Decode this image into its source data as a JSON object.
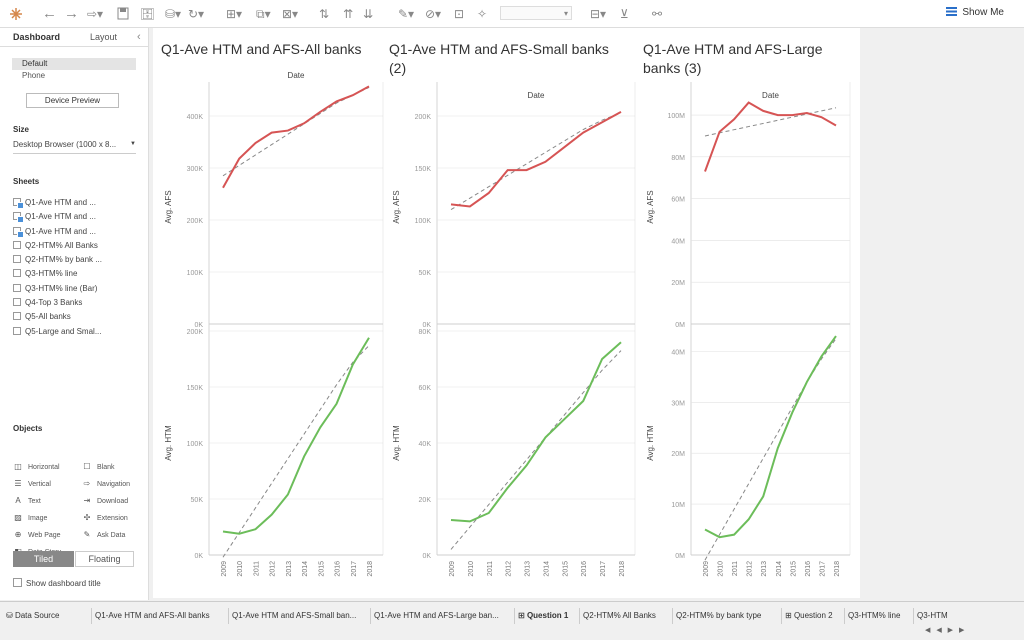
{
  "toolbar": {
    "show_me_label": "Show Me",
    "icons": [
      "tableau-logo-icon",
      "undo-icon",
      "redo-icon",
      "redo-dropdown-icon",
      "save-icon",
      "new-datasource-icon",
      "pause-updates-icon",
      "refresh-icon",
      "new-worksheet-icon",
      "duplicate-icon",
      "clear-icon",
      "swap-icon",
      "sort-asc-icon",
      "sort-desc-icon",
      "highlight-icon",
      "group-icon",
      "label-icon",
      "pin-icon",
      "fit-icon",
      "fix-axes-icon",
      "presentation-icon",
      "share-icon"
    ]
  },
  "sidebar": {
    "tabs": {
      "dashboard": "Dashboard",
      "layout": "Layout"
    },
    "device_default": "Default",
    "device_phone": "Phone",
    "device_preview": "Device Preview",
    "size_heading": "Size",
    "size_value": "Desktop Browser (1000 x 8...",
    "sheets_heading": "Sheets",
    "sheets": [
      {
        "label": "Q1-Ave HTM and ...",
        "in_dashboard": true
      },
      {
        "label": "Q1-Ave HTM and ...",
        "in_dashboard": true
      },
      {
        "label": "Q1-Ave HTM and ...",
        "in_dashboard": true
      },
      {
        "label": "Q2-HTM% All Banks",
        "in_dashboard": false
      },
      {
        "label": "Q2-HTM% by bank ...",
        "in_dashboard": false
      },
      {
        "label": "Q3-HTM% line",
        "in_dashboard": false
      },
      {
        "label": "Q3-HTM% line (Bar)",
        "in_dashboard": false
      },
      {
        "label": "Q4-Top 3 Banks",
        "in_dashboard": false
      },
      {
        "label": "Q5-All banks",
        "in_dashboard": false
      },
      {
        "label": "Q5-Large and Smal...",
        "in_dashboard": false
      }
    ],
    "objects_heading": "Objects",
    "objects": [
      {
        "label": "Horizontal",
        "icon": "horizontal-icon",
        "glyph": "◫"
      },
      {
        "label": "Blank",
        "icon": "blank-icon",
        "glyph": "☐"
      },
      {
        "label": "Vertical",
        "icon": "vertical-icon",
        "glyph": "☰"
      },
      {
        "label": "Navigation",
        "icon": "navigation-icon",
        "glyph": "⇨"
      },
      {
        "label": "Text",
        "icon": "text-icon",
        "glyph": "A"
      },
      {
        "label": "Download",
        "icon": "download-icon",
        "glyph": "⇥"
      },
      {
        "label": "Image",
        "icon": "image-icon",
        "glyph": "▨"
      },
      {
        "label": "Extension",
        "icon": "extension-icon",
        "glyph": "✣"
      },
      {
        "label": "Web Page",
        "icon": "web-page-icon",
        "glyph": "⊕"
      },
      {
        "label": "Ask Data",
        "icon": "ask-data-icon",
        "glyph": "✎"
      },
      {
        "label": "Data Story",
        "icon": "data-story-icon",
        "glyph": "◧"
      }
    ],
    "tiled": "Tiled",
    "floating": "Floating",
    "show_title": "Show dashboard title"
  },
  "colors": {
    "top_line": "#d65454",
    "bottom_line": "#6cbd5a",
    "trend": "#888888",
    "grid": "#e2e2e2",
    "axis_text": "#999999"
  },
  "chart_data": [
    {
      "type": "line",
      "title": "Q1-Ave HTM and AFS-All banks",
      "xlabel": "Date",
      "x": [
        2009,
        2010,
        2011,
        2012,
        2013,
        2014,
        2015,
        2016,
        2017,
        2018
      ],
      "series": [
        {
          "name": "Avg. AFS",
          "ylabel": "Avg. AFS",
          "ylim": [
            0,
            450000
          ],
          "yticks": [
            "0K",
            "100K",
            "200K",
            "300K",
            "400K"
          ],
          "tick_values": [
            0,
            100000,
            200000,
            300000,
            400000
          ],
          "values": [
            262000,
            318000,
            348000,
            368000,
            372000,
            386000,
            408000,
            428000,
            440000,
            457000
          ],
          "trend": [
            285000,
            305000,
            325000,
            345000,
            365000,
            385000,
            405000,
            425000,
            440000,
            455000
          ]
        },
        {
          "name": "Avg. HTM",
          "ylabel": "Avg. HTM",
          "ylim": [
            0,
            200000
          ],
          "yticks": [
            "0K",
            "50K",
            "100K",
            "150K",
            "200K"
          ],
          "tick_values": [
            0,
            50000,
            100000,
            150000,
            200000
          ],
          "values": [
            21000,
            19000,
            23000,
            36000,
            54000,
            88000,
            114000,
            135000,
            170000,
            194000
          ],
          "trend": [
            -2000,
            20000,
            42000,
            64000,
            86000,
            108000,
            130000,
            152000,
            172000,
            187000
          ]
        }
      ]
    },
    {
      "type": "line",
      "title": "Q1-Ave HTM and AFS-Small banks (2)",
      "xlabel": "Date",
      "x": [
        2009,
        2010,
        2011,
        2012,
        2013,
        2014,
        2015,
        2016,
        2017,
        2018
      ],
      "series": [
        {
          "name": "Avg. AFS",
          "ylabel": "Avg. AFS",
          "ylim": [
            0,
            225000
          ],
          "yticks": [
            "0K",
            "50K",
            "100K",
            "150K",
            "200K"
          ],
          "tick_values": [
            0,
            50000,
            100000,
            150000,
            200000
          ],
          "values": [
            115000,
            113000,
            126000,
            148000,
            148000,
            156000,
            170000,
            184000,
            194000,
            204000
          ],
          "trend": [
            110000,
            121000,
            132000,
            143000,
            154000,
            165000,
            176000,
            187000,
            196000,
            203000
          ]
        },
        {
          "name": "Avg. HTM",
          "ylabel": "Avg. HTM",
          "ylim": [
            0,
            80000
          ],
          "yticks": [
            "0K",
            "20K",
            "40K",
            "60K",
            "80K"
          ],
          "tick_values": [
            0,
            20000,
            40000,
            60000,
            80000
          ],
          "values": [
            12500,
            12000,
            15000,
            24000,
            32000,
            42000,
            48500,
            55000,
            70000,
            76000
          ],
          "trend": [
            2000,
            10000,
            18000,
            26000,
            34000,
            42000,
            50000,
            58000,
            66000,
            73000
          ]
        }
      ]
    },
    {
      "type": "line",
      "title": "Q1-Ave HTM and AFS-Large banks (3)",
      "xlabel": "Date",
      "x": [
        2009,
        2010,
        2011,
        2012,
        2013,
        2014,
        2015,
        2016,
        2017,
        2018
      ],
      "series": [
        {
          "name": "Avg. AFS",
          "ylabel": "Avg. AFS",
          "ylim": [
            0,
            112000000
          ],
          "yticks": [
            "0M",
            "20M",
            "40M",
            "60M",
            "80M",
            "100M"
          ],
          "tick_values": [
            0,
            20000000,
            40000000,
            60000000,
            80000000,
            100000000
          ],
          "values": [
            73000000,
            92000000,
            98000000,
            106000000,
            102000000,
            100000000,
            100000000,
            101000000,
            99000000,
            95000000
          ],
          "trend": [
            90000000,
            91500000,
            93000000,
            94500000,
            96000000,
            97500000,
            99000000,
            100500000,
            102000000,
            103500000
          ]
        },
        {
          "name": "Avg. HTM",
          "ylabel": "Avg. HTM",
          "ylim": [
            0,
            44000000
          ],
          "yticks": [
            "0M",
            "10M",
            "20M",
            "30M",
            "40M"
          ],
          "tick_values": [
            0,
            10000000,
            20000000,
            30000000,
            40000000
          ],
          "values": [
            5000000,
            3500000,
            4000000,
            7000000,
            11500000,
            21000000,
            28000000,
            34000000,
            39000000,
            43000000
          ],
          "trend": [
            -1000000,
            4000000,
            9000000,
            14000000,
            19000000,
            24000000,
            29000000,
            34000000,
            38500000,
            42500000
          ]
        }
      ]
    }
  ],
  "sheet_tabs": [
    {
      "label": "Data Source",
      "icon": "database-icon",
      "active": false
    },
    {
      "label": "Q1-Ave HTM and AFS-All banks",
      "active": false
    },
    {
      "label": "Q1-Ave HTM and AFS-Small ban...",
      "active": false
    },
    {
      "label": "Q1-Ave HTM and AFS-Large ban...",
      "active": false
    },
    {
      "label": "Question 1",
      "icon": "dashboard-icon",
      "active": true
    },
    {
      "label": "Q2-HTM% All Banks",
      "active": false
    },
    {
      "label": "Q2-HTM% by bank type",
      "active": false
    },
    {
      "label": "Question 2",
      "icon": "dashboard-icon",
      "active": false
    },
    {
      "label": "Q3-HTM% line",
      "active": false
    },
    {
      "label": "Q3-HTM",
      "active": false
    }
  ],
  "nav": "◀ ◀ ▶ ▶"
}
